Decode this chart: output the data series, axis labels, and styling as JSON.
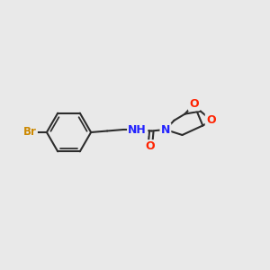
{
  "background_color": "#e9e9e9",
  "bond_color": "#2d2d2d",
  "atom_colors": {
    "Br": "#cc8800",
    "O": "#ff2200",
    "N": "#2222ff",
    "C": "#2d2d2d"
  },
  "bond_width": 1.5,
  "figsize": [
    3.0,
    3.0
  ],
  "dpi": 100,
  "xlim": [
    0,
    10
  ],
  "ylim": [
    0,
    10
  ]
}
